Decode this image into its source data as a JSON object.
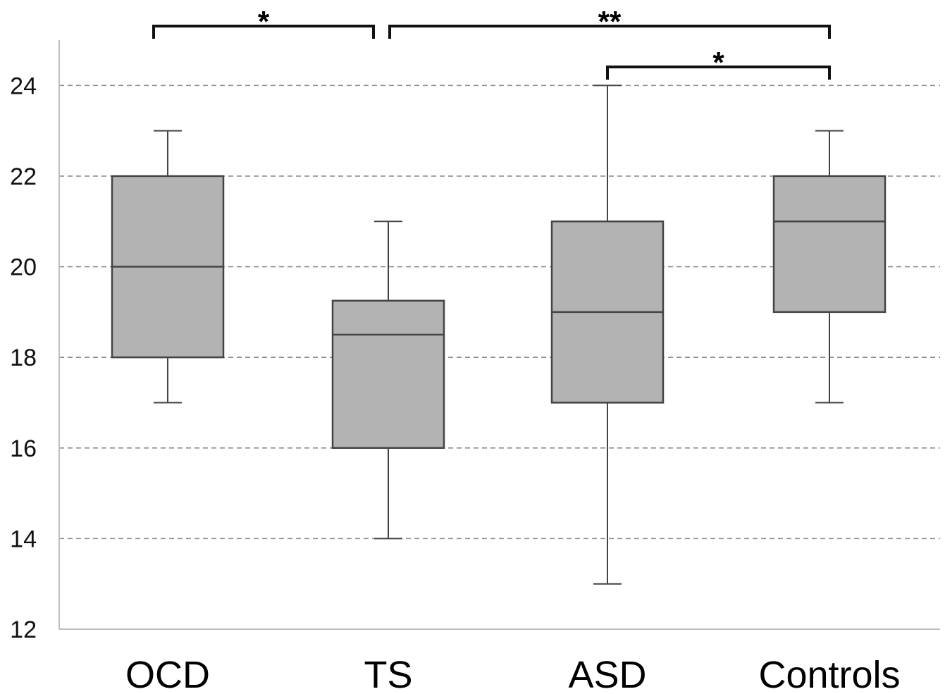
{
  "chart_data": {
    "type": "boxplot",
    "title": "",
    "xlabel": "",
    "ylabel": "",
    "ylim": [
      12,
      25
    ],
    "yticks": [
      12,
      14,
      16,
      18,
      20,
      22,
      24
    ],
    "grid": "horizontal-dashed",
    "box_color": "#b3b3b3",
    "categories": [
      "OCD",
      "TS",
      "ASD",
      "Controls"
    ],
    "boxes": [
      {
        "label": "OCD",
        "whisker_low": 17,
        "q1": 18,
        "median": 20,
        "q3": 22,
        "whisker_high": 23
      },
      {
        "label": "TS",
        "whisker_low": 14,
        "q1": 16,
        "median": 18.5,
        "q3": 19.25,
        "whisker_high": 21
      },
      {
        "label": "ASD",
        "whisker_low": 13,
        "q1": 17,
        "median": 19,
        "q3": 21,
        "whisker_high": 24
      },
      {
        "label": "Controls",
        "whisker_low": 17,
        "q1": 19,
        "median": 21,
        "q3": 22,
        "whisker_high": 23
      }
    ],
    "significance": [
      {
        "from": "OCD",
        "to": "TS",
        "label": "*"
      },
      {
        "from": "TS",
        "to": "Controls",
        "label": "**"
      },
      {
        "from": "ASD",
        "to": "Controls",
        "label": "*"
      }
    ]
  }
}
